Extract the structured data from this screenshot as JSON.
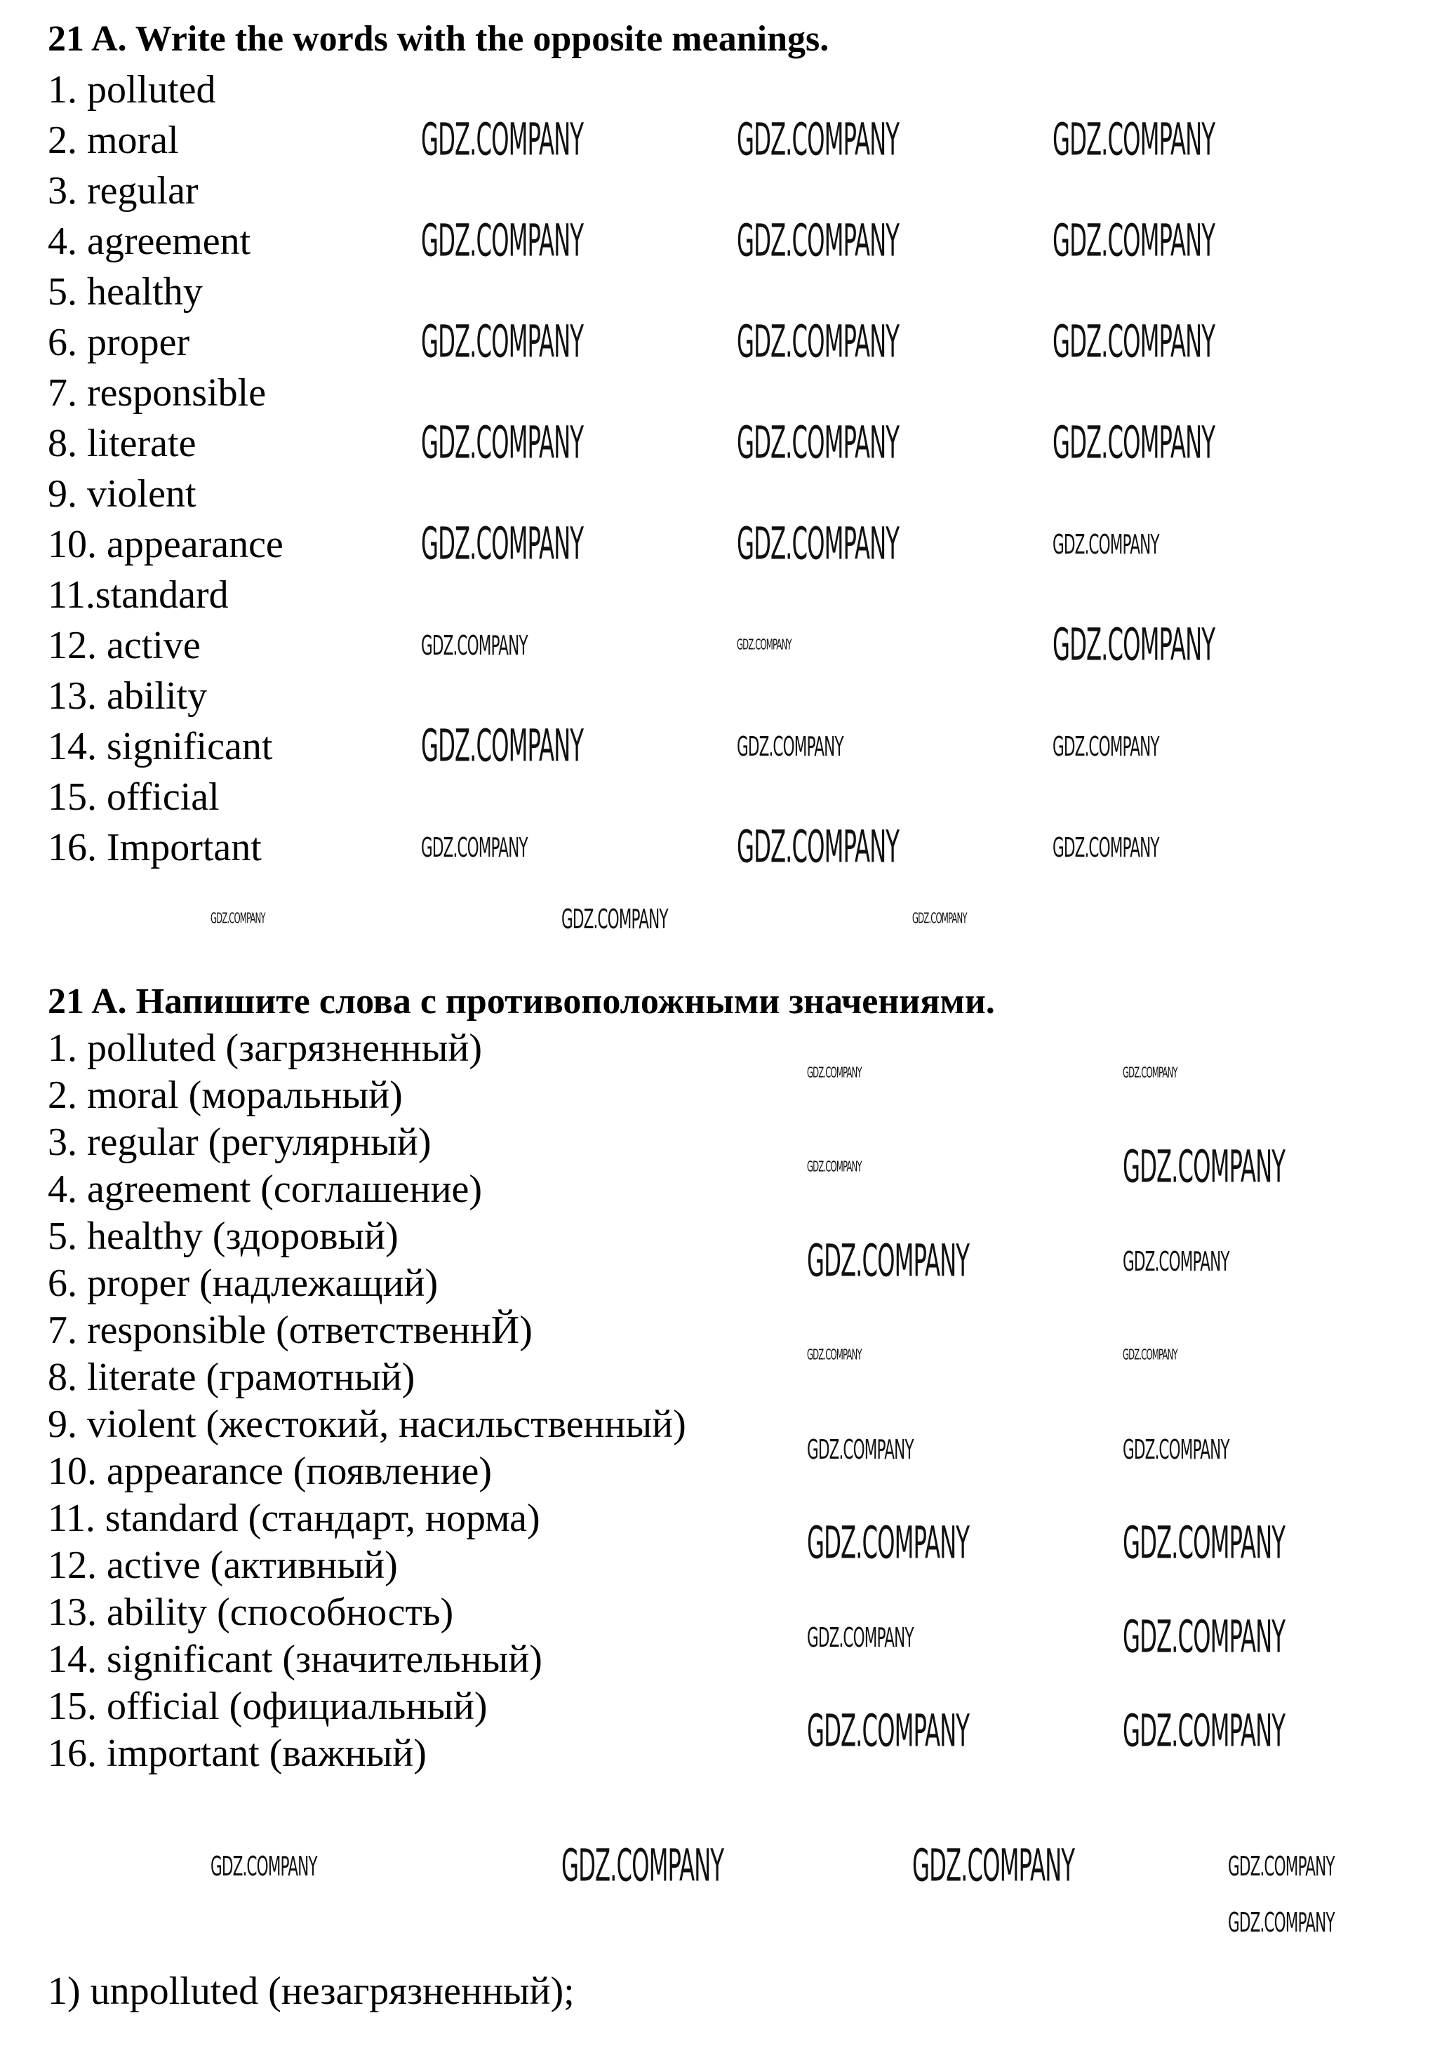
{
  "section_en": {
    "title": "21 A. Write the words with the opposite meanings.",
    "items": [
      "1. polluted",
      "2. moral",
      "3. regular",
      "4. agreement",
      "5. healthy",
      "6. proper",
      "7. responsible",
      "8. literate",
      "9. violent",
      "10. appearance",
      "11.standard",
      "12. active",
      "13. ability",
      "14. significant",
      "15. official",
      "16. Important"
    ]
  },
  "section_ru": {
    "title": "21 A. Напишите слова с противоположными значениями.",
    "items": [
      "1. polluted (загрязненный)",
      "2. moral (моральный)",
      "3. regular (регулярный)",
      "4. agreement (соглашение)",
      "5. healthy (здоровый)",
      "6. proper (надлежащий)",
      "7. responsible (ответственнЙ)",
      "8. literate (грамотный)",
      "9. violent (жестокий, насильственный)",
      "10. appearance (появление)",
      "11. standard (стандарт, норма)",
      "12. active (активный)",
      "13. ability (способность)",
      "14. significant (значительный)",
      "15. official (официальный)",
      "16. important (важный)"
    ]
  },
  "answers": [
    "1) unpolluted (незагрязненный);"
  ],
  "watermark": "GDZ.COMPANY"
}
